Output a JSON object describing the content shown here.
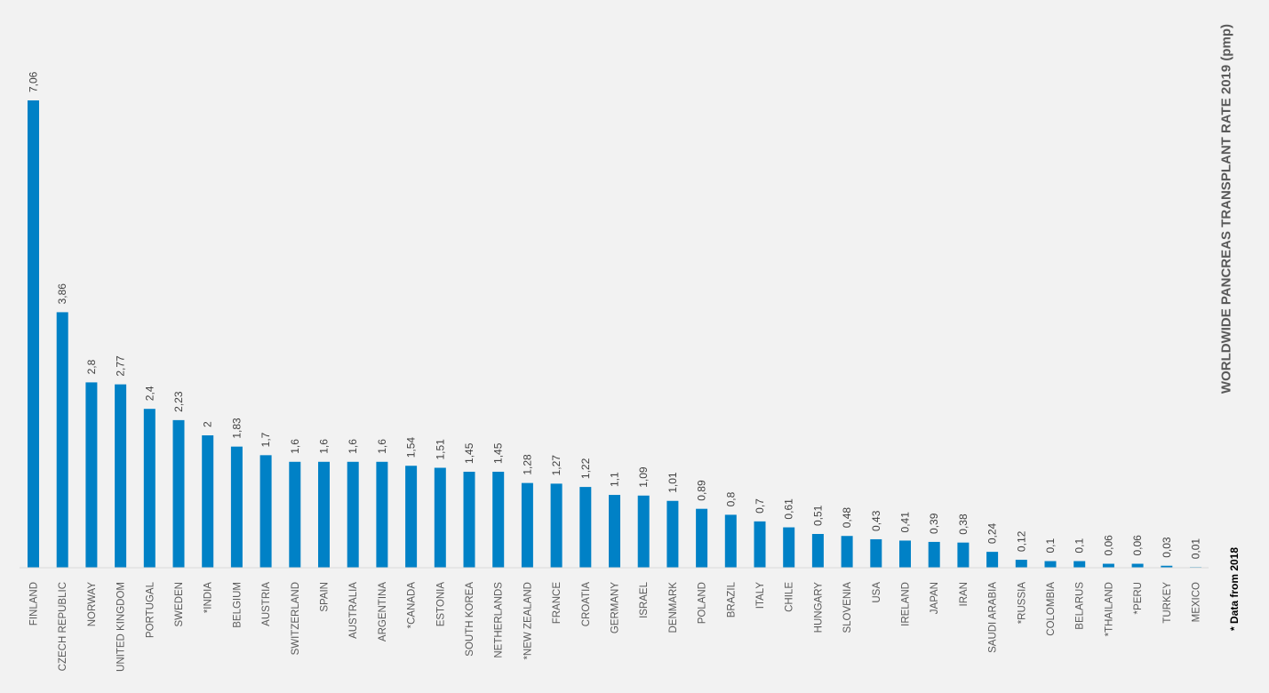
{
  "chart_data": {
    "type": "bar",
    "title": "WORLDWIDE PANCREAS TRANSPLANT RATE 2019 (pmp)",
    "note": "* Data from 2018",
    "categories": [
      "FINLAND",
      "CZECH REPUBLIC",
      "NORWAY",
      "UNITED KINGDOM",
      "PORTUGAL",
      "SWEDEN",
      "*INDIA",
      "BELGIUM",
      "AUSTRIA",
      "SWITZERLAND",
      "SPAIN",
      "AUSTRALIA",
      "ARGENTINA",
      "*CANADA",
      "ESTONIA",
      "SOUTH KOREA",
      "NETHERLANDS",
      "*NEW ZEALAND",
      "FRANCE",
      "CROATIA",
      "GERMANY",
      "ISRAEL",
      "DENMARK",
      "POLAND",
      "BRAZIL",
      "ITALY",
      "CHILE",
      "HUNGARY",
      "SLOVENIA",
      "USA",
      "IRELAND",
      "JAPAN",
      "IRAN",
      "SAUDI ARABIA",
      "*RUSSIA",
      "COLOMBIA",
      "BELARUS",
      "*THAILAND",
      "*PERU",
      "TURKEY",
      "MEXICO"
    ],
    "values": [
      7.06,
      3.86,
      2.8,
      2.77,
      2.4,
      2.23,
      2,
      1.83,
      1.7,
      1.6,
      1.6,
      1.6,
      1.6,
      1.54,
      1.51,
      1.45,
      1.45,
      1.28,
      1.27,
      1.22,
      1.1,
      1.09,
      1.01,
      0.89,
      0.8,
      0.7,
      0.61,
      0.51,
      0.48,
      0.43,
      0.41,
      0.39,
      0.38,
      0.24,
      0.12,
      0.1,
      0.1,
      0.06,
      0.06,
      0.03,
      0.01
    ],
    "value_labels": [
      "7,06",
      "3,86",
      "2,8",
      "2,77",
      "2,4",
      "2,23",
      "2",
      "1,83",
      "1,7",
      "1,6",
      "1,6",
      "1,6",
      "1,6",
      "1,54",
      "1,51",
      "1,45",
      "1,45",
      "1,28",
      "1,27",
      "1,22",
      "1,1",
      "1,09",
      "1,01",
      "0,89",
      "0,8",
      "0,7",
      "0,61",
      "0,51",
      "0,48",
      "0,43",
      "0,41",
      "0,39",
      "0,38",
      "0,24",
      "0,12",
      "0,1",
      "0,1",
      "0,06",
      "0,06",
      "0,03",
      "0,01"
    ],
    "xlabel": "",
    "ylabel": "",
    "ylim": [
      0,
      7.06
    ],
    "grid": false,
    "legend": "none",
    "bar_color": "#0081c6",
    "axis_color": "#d9d9d9"
  }
}
